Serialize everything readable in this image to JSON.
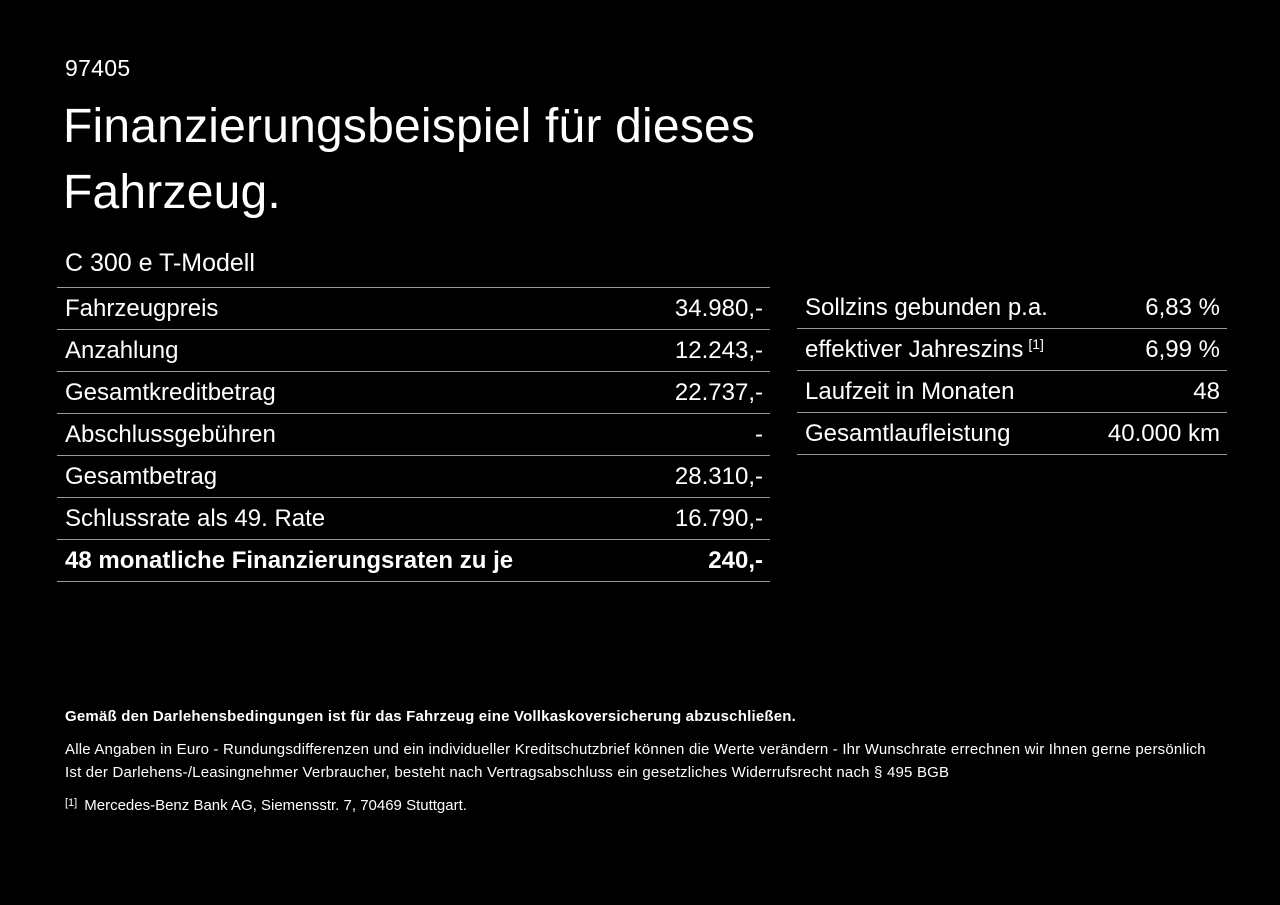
{
  "page": {
    "listing_id": "97405",
    "title_line1": "Finanzierungsbeispiel für dieses",
    "title_line2": "Fahrzeug.",
    "vehicle_model": "C 300 e T-Modell"
  },
  "finance_table": {
    "rows": [
      {
        "label": "Fahrzeugpreis",
        "value": "34.980,-"
      },
      {
        "label": "Anzahlung",
        "value": "12.243,-"
      },
      {
        "label": "Gesamtkreditbetrag",
        "value": "22.737,-"
      },
      {
        "label": "Abschlussgebühren",
        "value": "-"
      },
      {
        "label": "Gesamtbetrag",
        "value": "28.310,-"
      },
      {
        "label": "Schlussrate als 49. Rate",
        "value": "16.790,-"
      },
      {
        "label": "48 monatliche Finanzierungsraten zu je",
        "value": "240,-"
      }
    ]
  },
  "conditions_table": {
    "rows": [
      {
        "label": "Sollzins gebunden p.a.",
        "value": "6,83 %"
      },
      {
        "label": "effektiver Jahreszins",
        "sup": "[1]",
        "value": "6,99 %"
      },
      {
        "label": "Laufzeit in Monaten",
        "value": "48"
      },
      {
        "label": "Gesamtlaufleistung",
        "value": "40.000 km"
      }
    ]
  },
  "footer": {
    "insurance_note": "Gemäß den Darlehensbedingungen ist für das Fahrzeug eine Vollkaskoversicherung abzuschließen.",
    "note_line1": "Alle Angaben in Euro - Rundungsdifferenzen und ein individueller Kreditschutzbrief können die Werte verändern - Ihr Wunschrate errechnen wir Ihnen gerne persönlich",
    "note_line2": "Ist der Darlehens-/Leasingnehmer Verbraucher, besteht nach Vertragsabschluss ein gesetzliches Widerrufsrecht nach § 495 BGB",
    "footnote_marker": "[1]",
    "footnote_text": "Mercedes-Benz Bank AG, Siemensstr. 7, 70469 Stuttgart."
  },
  "colors": {
    "background": "#000000",
    "text": "#ffffff",
    "divider": "#9a9a9a"
  }
}
